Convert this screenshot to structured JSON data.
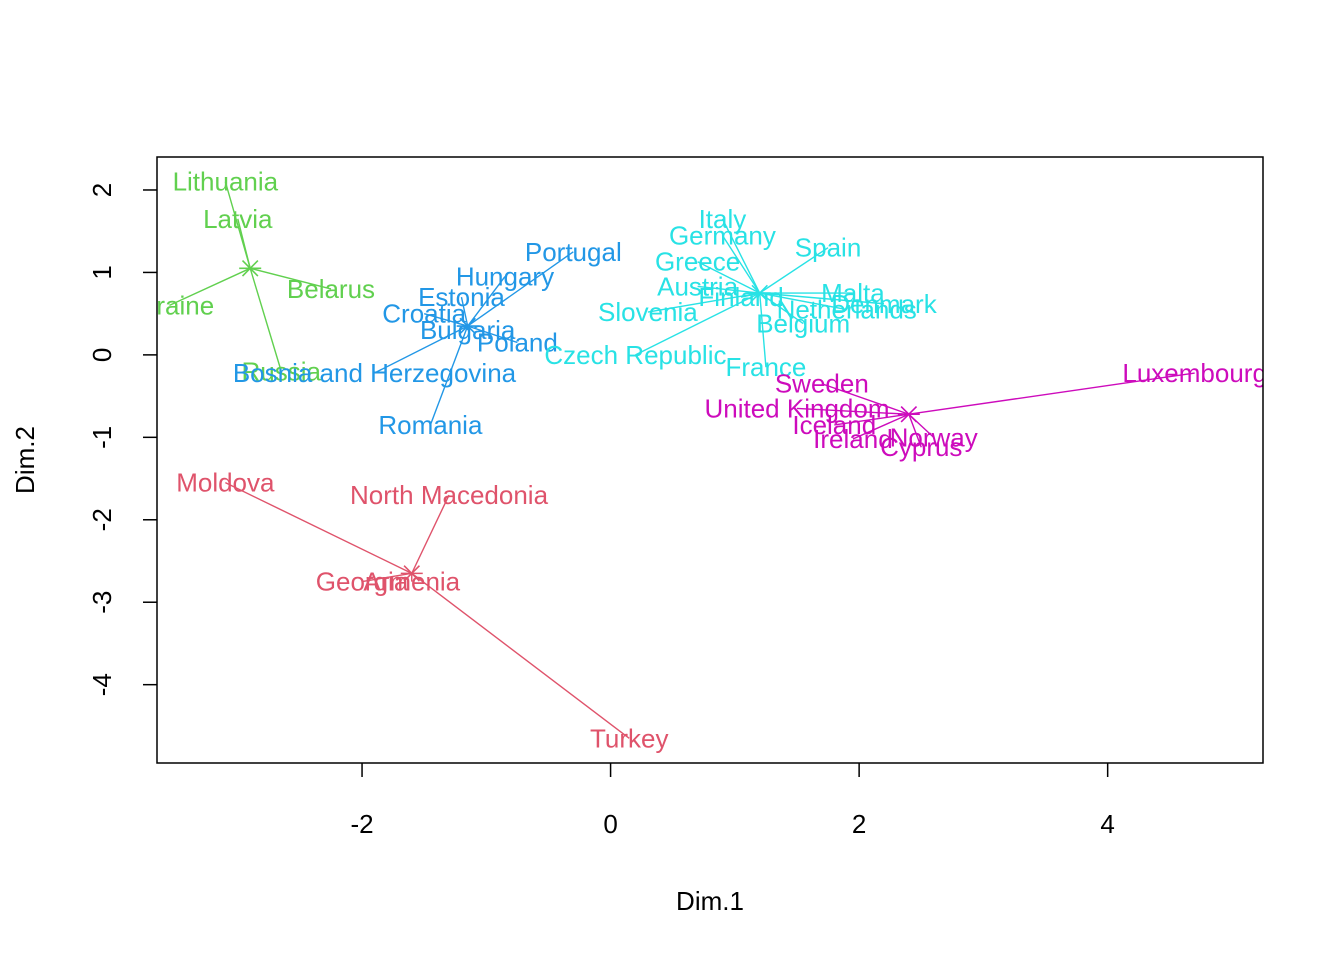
{
  "chart_data": {
    "type": "scatter",
    "xlabel": "Dim.1",
    "ylabel": "Dim.2",
    "xlim": [
      -3.65,
      5.25
    ],
    "ylim": [
      -4.95,
      2.4
    ],
    "xticks": [
      -2,
      0,
      2,
      4
    ],
    "yticks": [
      -4,
      -3,
      -2,
      -1,
      0,
      1,
      2
    ],
    "grid": false,
    "legend": "none",
    "clusters": [
      {
        "color": "#61D04F",
        "center": [
          -2.9,
          1.05
        ],
        "points": [
          {
            "label": "Lithuania",
            "x": -3.1,
            "y": 2.1
          },
          {
            "label": "Latvia",
            "x": -3.0,
            "y": 1.65
          },
          {
            "label": "Ukraine",
            "x": -3.55,
            "y": 0.6
          },
          {
            "label": "Belarus",
            "x": -2.25,
            "y": 0.8
          },
          {
            "label": "Russia",
            "x": -2.65,
            "y": -0.2
          }
        ]
      },
      {
        "color": "#2297E6",
        "center": [
          -1.15,
          0.35
        ],
        "points": [
          {
            "label": "Portugal",
            "x": -0.3,
            "y": 1.25
          },
          {
            "label": "Hungary",
            "x": -0.85,
            "y": 0.95
          },
          {
            "label": "Estonia",
            "x": -1.2,
            "y": 0.7
          },
          {
            "label": "Croatia",
            "x": -1.5,
            "y": 0.5
          },
          {
            "label": "Bulgaria",
            "x": -1.15,
            "y": 0.3
          },
          {
            "label": "Poland",
            "x": -0.75,
            "y": 0.15
          },
          {
            "label": "Bosnia and Herzegovina",
            "x": -1.9,
            "y": -0.22
          },
          {
            "label": "Romania",
            "x": -1.45,
            "y": -0.85
          }
        ]
      },
      {
        "color": "#28E2E5",
        "center": [
          1.2,
          0.75
        ],
        "points": [
          {
            "label": "Italy",
            "x": 0.9,
            "y": 1.65
          },
          {
            "label": "Germany",
            "x": 0.9,
            "y": 1.45
          },
          {
            "label": "Spain",
            "x": 1.75,
            "y": 1.3
          },
          {
            "label": "Greece",
            "x": 0.7,
            "y": 1.13
          },
          {
            "label": "Austria",
            "x": 0.7,
            "y": 0.83
          },
          {
            "label": "Finland",
            "x": 1.05,
            "y": 0.7
          },
          {
            "label": "Malta",
            "x": 1.95,
            "y": 0.75
          },
          {
            "label": "Netherlands",
            "x": 1.9,
            "y": 0.55
          },
          {
            "label": "Denmark",
            "x": 2.2,
            "y": 0.62
          },
          {
            "label": "Slovenia",
            "x": 0.3,
            "y": 0.52
          },
          {
            "label": "Belgium",
            "x": 1.55,
            "y": 0.38
          },
          {
            "label": "Czech Republic",
            "x": 0.2,
            "y": 0.0
          },
          {
            "label": "France",
            "x": 1.25,
            "y": -0.15
          }
        ]
      },
      {
        "color": "#CD0BBC",
        "center": [
          2.4,
          -0.72
        ],
        "points": [
          {
            "label": "Luxembourg",
            "x": 4.7,
            "y": -0.22
          },
          {
            "label": "Sweden",
            "x": 1.7,
            "y": -0.35
          },
          {
            "label": "United Kingdom",
            "x": 1.5,
            "y": -0.65
          },
          {
            "label": "Iceland",
            "x": 1.8,
            "y": -0.85
          },
          {
            "label": "Ireland",
            "x": 1.95,
            "y": -1.02
          },
          {
            "label": "Norway",
            "x": 2.6,
            "y": -1.0
          },
          {
            "label": "Cyprus",
            "x": 2.5,
            "y": -1.12
          }
        ]
      },
      {
        "color": "#DF536B",
        "center": [
          -1.6,
          -2.65
        ],
        "points": [
          {
            "label": "Moldova",
            "x": -3.1,
            "y": -1.55
          },
          {
            "label": "North Macedonia",
            "x": -1.3,
            "y": -1.7
          },
          {
            "label": "Georgia",
            "x": -2.0,
            "y": -2.75
          },
          {
            "label": "Armenia",
            "x": -1.6,
            "y": -2.75
          },
          {
            "label": "Turkey",
            "x": 0.15,
            "y": -4.65
          }
        ]
      }
    ]
  }
}
